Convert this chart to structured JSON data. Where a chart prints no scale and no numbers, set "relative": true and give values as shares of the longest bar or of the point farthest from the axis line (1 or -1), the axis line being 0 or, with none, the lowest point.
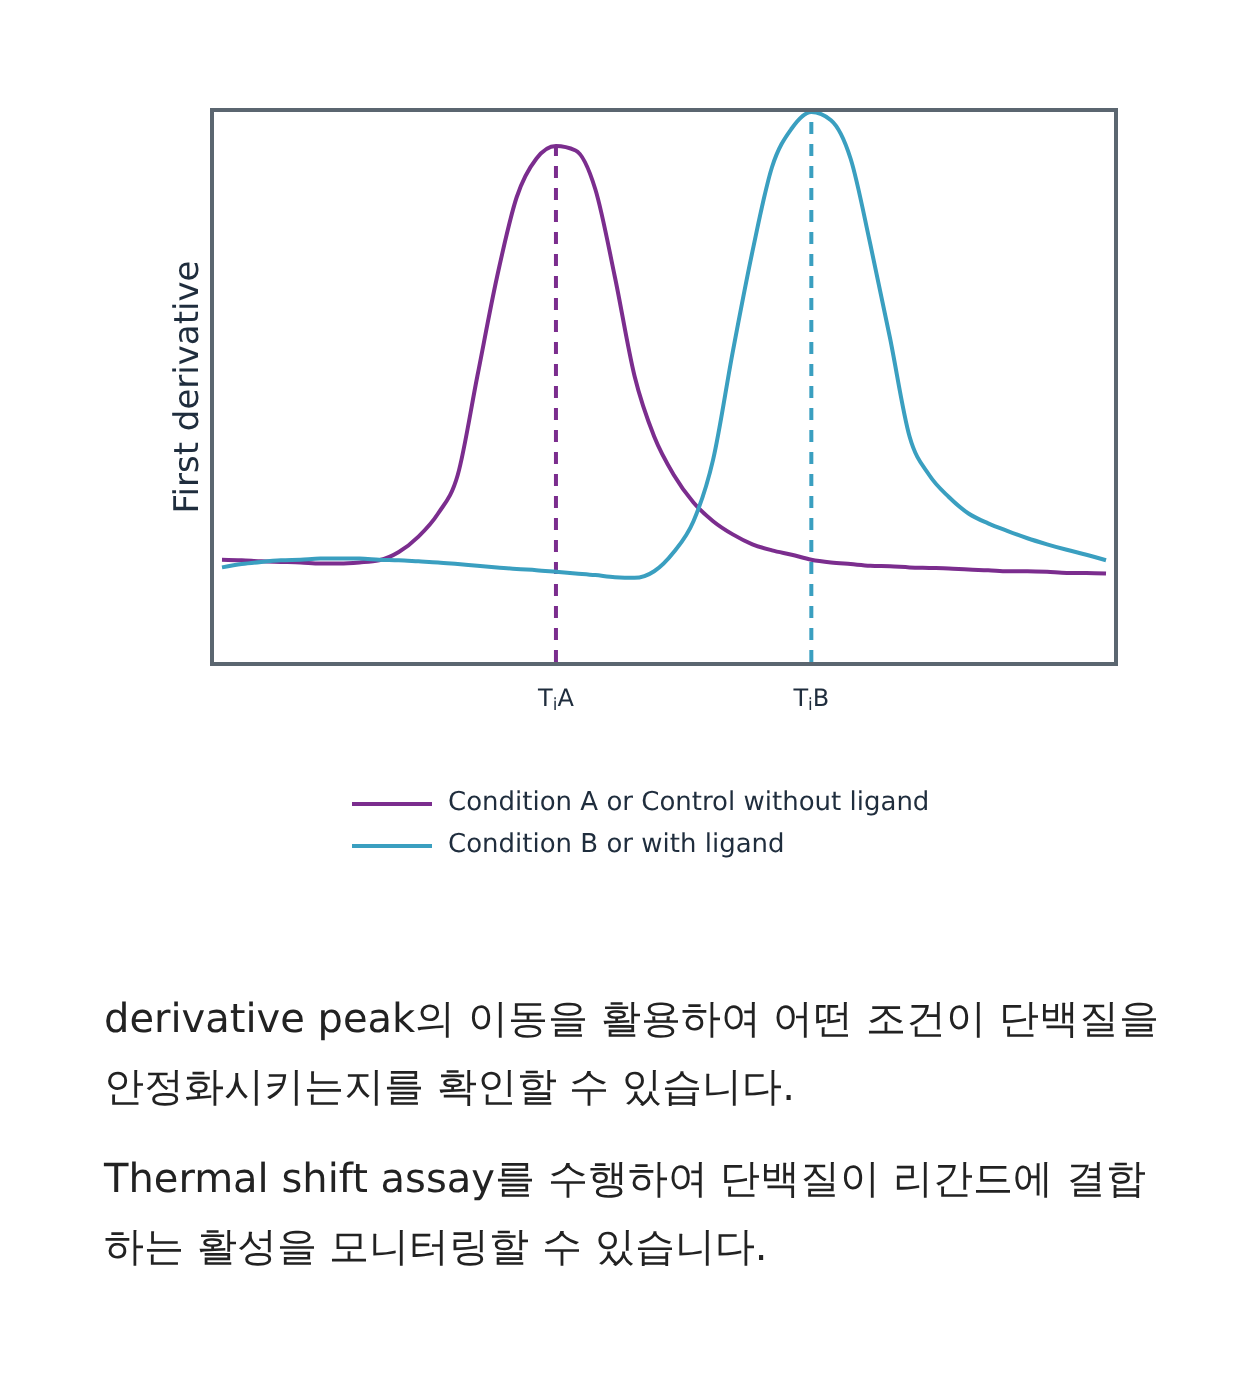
{
  "chart_data": {
    "type": "line",
    "relative": true,
    "ylabel": "First derivative",
    "categories": [
      null,
      null,
      null,
      null,
      null,
      null,
      null,
      null,
      null,
      null,
      null,
      null,
      null,
      null,
      null,
      null,
      null,
      "T$_{i}$A",
      null,
      null,
      null,
      null,
      null,
      null,
      null,
      null,
      null,
      null,
      null,
      null,
      "T$_{i}$B",
      null,
      null,
      null,
      null,
      null,
      null,
      null,
      null,
      null,
      null,
      null,
      null,
      null,
      null,
      null
    ],
    "series": [
      {
        "name": "Condition A or Control without ligand",
        "color": "#7b2d8e",
        "values": [
          0.186,
          0.185,
          0.183,
          0.182,
          0.181,
          0.179,
          0.179,
          0.181,
          0.185,
          0.2,
          0.228,
          0.27,
          0.34,
          0.52,
          0.7,
          0.845,
          0.915,
          0.938,
          0.93,
          0.86,
          0.7,
          0.52,
          0.41,
          0.34,
          0.29,
          0.256,
          0.232,
          0.214,
          0.203,
          0.195,
          0.186,
          0.181,
          0.178,
          0.175,
          0.174,
          0.172,
          0.171,
          0.17,
          0.168,
          0.167,
          0.165,
          0.165,
          0.164,
          0.162,
          0.162,
          0.161
        ]
      },
      {
        "name": "Condition B or with ligand",
        "color": "#3a9fc0",
        "values": [
          0.172,
          0.178,
          0.182,
          0.185,
          0.186,
          0.188,
          0.188,
          0.188,
          0.186,
          0.185,
          0.183,
          0.181,
          0.178,
          0.175,
          0.172,
          0.169,
          0.167,
          0.164,
          0.161,
          0.158,
          0.154,
          0.153,
          0.165,
          0.2,
          0.256,
          0.368,
          0.564,
          0.746,
          0.9,
          0.97,
          1,
          0.985,
          0.915,
          0.76,
          0.59,
          0.41,
          0.34,
          0.3,
          0.27,
          0.252,
          0.238,
          0.225,
          0.214,
          0.204,
          0.195,
          0.185
        ]
      }
    ],
    "ref_lines": [
      {
        "axis": "x",
        "value": "T$_{i}$A",
        "color": "#7b2d8e",
        "line_style": "dashed"
      },
      {
        "axis": "x",
        "value": "T$_{i}$B",
        "color": "#3a9fc0",
        "line_style": "dashed"
      }
    ],
    "legend": "bottom",
    "grid": false,
    "marker": "none",
    "line_style": "solid",
    "annotations": [
      "derivative peak의 이동을 활용하여 어떤 조건이 단백질을 안정화시키는지를 확인할 수 있습니다.",
      "Thermal shift assay를 수행하여 단백질이 리간드에 결합하는 활성을 모니터링할 수 있습니다."
    ]
  }
}
